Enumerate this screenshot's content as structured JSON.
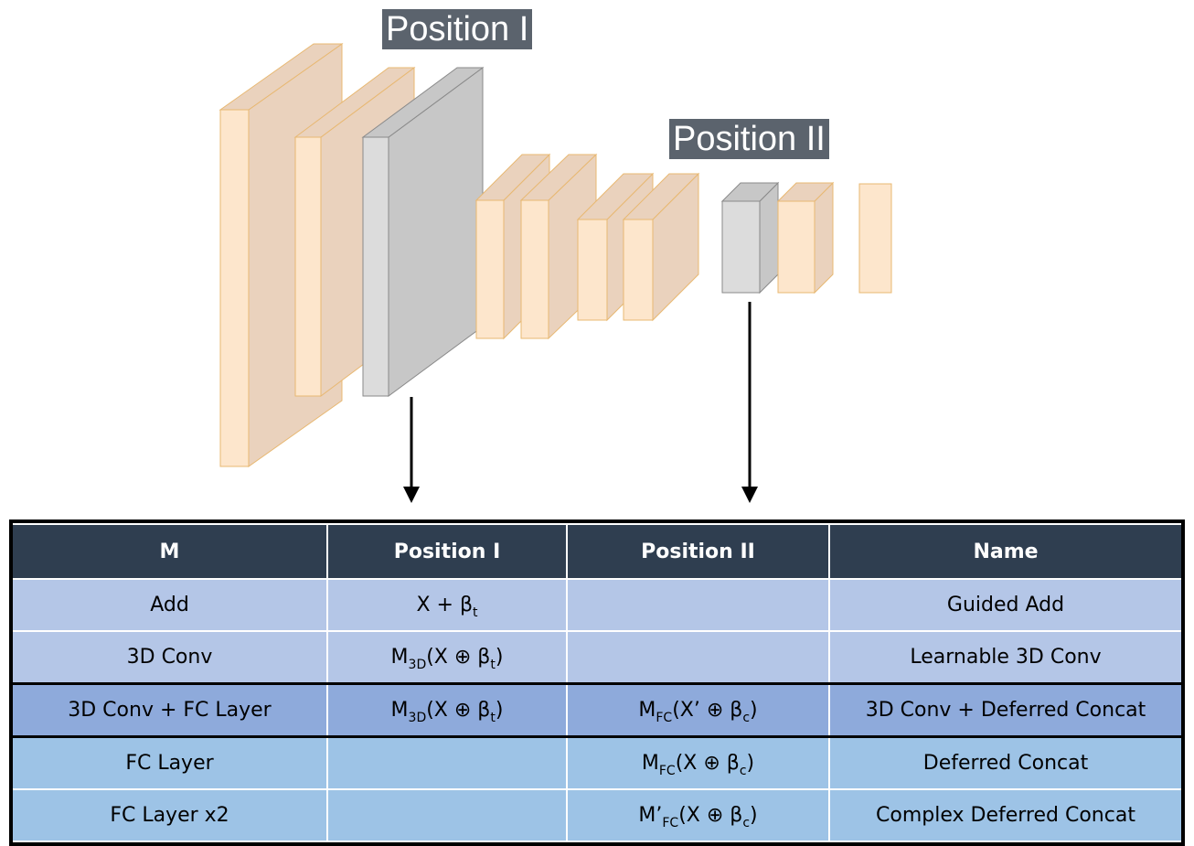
{
  "labels": {
    "position_1": "Position I",
    "position_2": "Position II"
  },
  "colors": {
    "layer_front": "#fde6cc",
    "layer_side": "#ead2bd",
    "layer_edge": "#e8b872",
    "gray_front": "#dcdcdc",
    "gray_side": "#c7c7c7",
    "header": "#2f3e50"
  },
  "table": {
    "headers": [
      "M",
      "Position I",
      "Position II",
      "Name"
    ],
    "rows": [
      {
        "m": "Add",
        "p1_base": "X + β",
        "p1_sub": "t",
        "p1_tail": "",
        "p2_base": "",
        "p2_sub": "",
        "p2_tail": "",
        "name": "Guided Add"
      },
      {
        "m": "3D Conv",
        "p1_base": "M",
        "p1_sub": "3D",
        "p1_tail": "(X ⊕ β",
        "p1_sub2": "t",
        "p1_end": ")",
        "p2_base": "",
        "p2_sub": "",
        "p2_tail": "",
        "name": "Learnable 3D Conv"
      },
      {
        "m": "3D Conv + FC Layer",
        "p1_base": "M",
        "p1_sub": "3D",
        "p1_tail": "(X ⊕ β",
        "p1_sub2": "t",
        "p1_end": ")",
        "p2_base": "M",
        "p2_sub": "FC",
        "p2_tail": "(X’ ⊕ β",
        "p2_sub2": "c",
        "p2_end": ")",
        "name": "3D Conv + Deferred Concat"
      },
      {
        "m": "FC Layer",
        "p1_base": "",
        "p1_sub": "",
        "p1_tail": "",
        "p2_base": "M",
        "p2_sub": "FC",
        "p2_tail": "(X ⊕ β",
        "p2_sub2": "c",
        "p2_end": ")",
        "name": "Deferred Concat"
      },
      {
        "m": "FC Layer x2",
        "p1_base": "",
        "p1_sub": "",
        "p1_tail": "",
        "p2_base": "M’",
        "p2_sub": "FC",
        "p2_tail": "(X ⊕ β",
        "p2_sub2": "c",
        "p2_end": ")",
        "name": "Complex Deferred Concat"
      }
    ]
  }
}
